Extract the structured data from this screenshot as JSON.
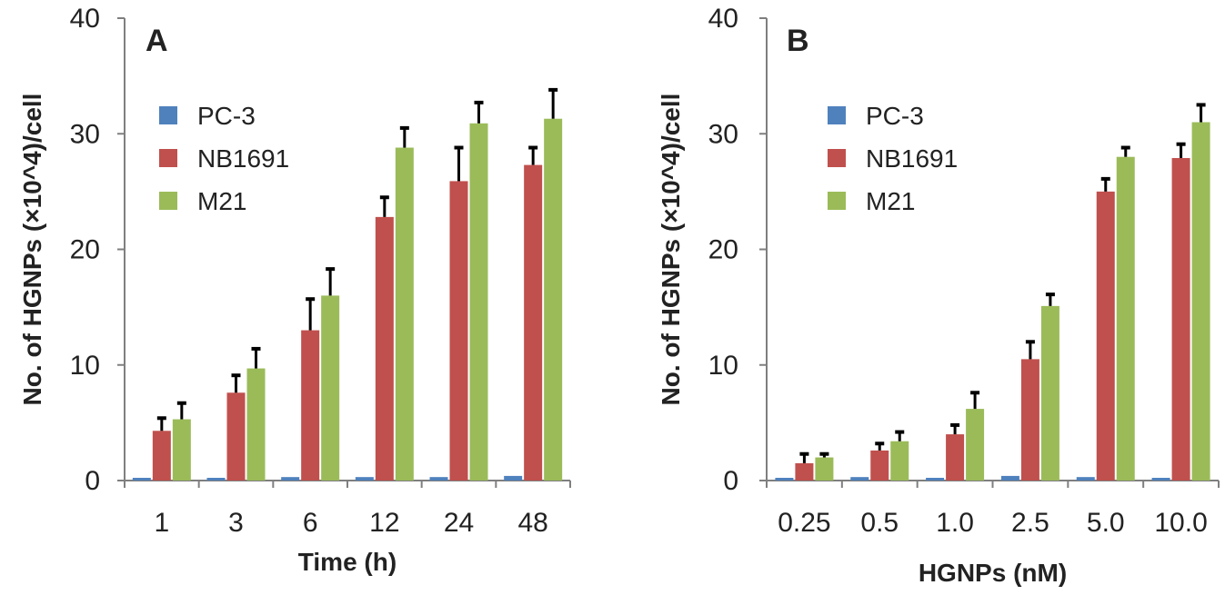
{
  "chart_data": [
    {
      "panel_label": "A",
      "type": "bar",
      "xlabel": "Time (h)",
      "ylabel": "No. of HGNPs (×10^4)/cell",
      "ylim": [
        0,
        40
      ],
      "yticks": [
        "0",
        "10",
        "20",
        "30",
        "40"
      ],
      "categories": [
        "1",
        "3",
        "6",
        "12",
        "24",
        "48"
      ],
      "series": [
        {
          "name": "PC-3",
          "color": "#4f81bd",
          "values": [
            0.2,
            0.2,
            0.3,
            0.3,
            0.3,
            0.4
          ],
          "errors": [
            0,
            0,
            0,
            0,
            0,
            0
          ]
        },
        {
          "name": "NB1691",
          "color": "#c0504d",
          "values": [
            4.3,
            7.6,
            13.0,
            22.8,
            25.9,
            27.3
          ],
          "errors": [
            1.1,
            1.5,
            2.7,
            1.7,
            2.9,
            1.5
          ]
        },
        {
          "name": "M21",
          "color": "#9bbb59",
          "values": [
            5.3,
            9.7,
            16.0,
            28.8,
            30.9,
            31.3
          ],
          "errors": [
            1.4,
            1.7,
            2.3,
            1.7,
            1.8,
            2.5
          ]
        }
      ],
      "legend_position": "top-left",
      "grid": false
    },
    {
      "panel_label": "B",
      "type": "bar",
      "xlabel": "HGNPs (nM)",
      "ylabel": "No. of HGNPs (×10^4)/cell",
      "ylim": [
        0,
        40
      ],
      "yticks": [
        "0",
        "10",
        "20",
        "30",
        "40"
      ],
      "categories": [
        "0.25",
        "0.5",
        "1.0",
        "2.5",
        "5.0",
        "10.0"
      ],
      "series": [
        {
          "name": "PC-3",
          "color": "#4f81bd",
          "values": [
            0.2,
            0.3,
            0.2,
            0.4,
            0.3,
            0.2
          ],
          "errors": [
            0,
            0,
            0,
            0,
            0,
            0
          ]
        },
        {
          "name": "NB1691",
          "color": "#c0504d",
          "values": [
            1.5,
            2.6,
            4.0,
            10.5,
            25.0,
            27.9
          ],
          "errors": [
            0.8,
            0.6,
            0.8,
            1.5,
            1.1,
            1.2
          ]
        },
        {
          "name": "M21",
          "color": "#9bbb59",
          "values": [
            2.0,
            3.4,
            6.2,
            15.1,
            28.0,
            31.0
          ],
          "errors": [
            0.3,
            0.8,
            1.4,
            1.0,
            0.8,
            1.5
          ]
        }
      ],
      "legend_position": "top-left",
      "grid": false
    }
  ]
}
